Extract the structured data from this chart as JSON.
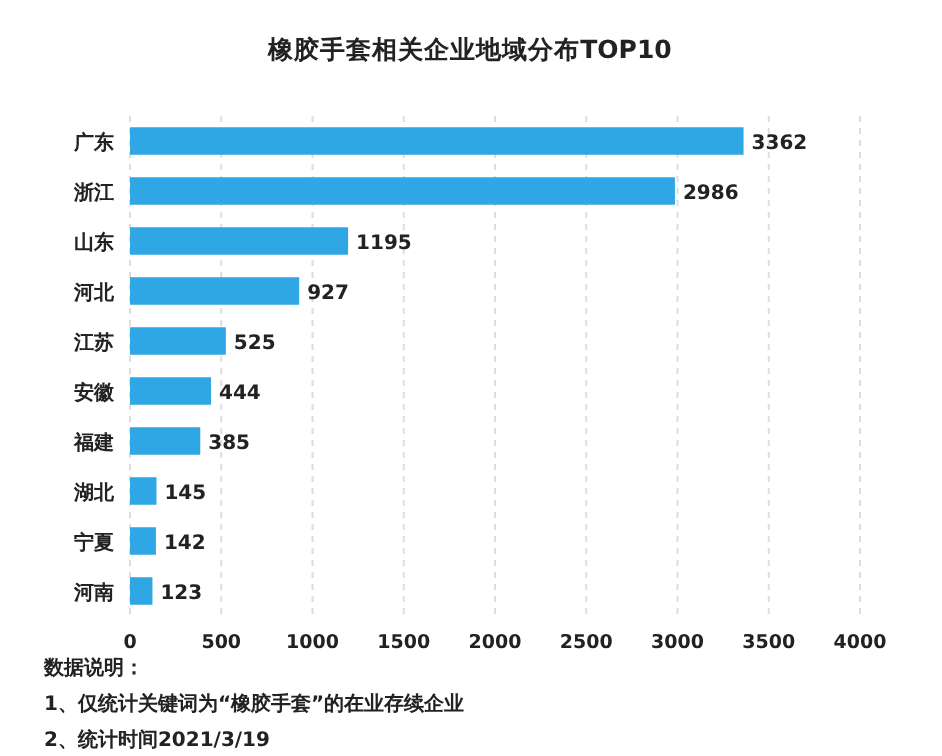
{
  "chart_data": {
    "type": "bar",
    "orientation": "horizontal",
    "title": "橡胶手套相关企业地域分布TOP10",
    "categories": [
      "广东",
      "浙江",
      "山东",
      "河北",
      "江苏",
      "安徽",
      "福建",
      "湖北",
      "宁夏",
      "河南"
    ],
    "values": [
      3362,
      2986,
      1195,
      927,
      525,
      444,
      385,
      145,
      142,
      123
    ],
    "color": "#2ea7e4",
    "xlim": [
      0,
      4000
    ],
    "xticks": [
      0,
      500,
      1000,
      1500,
      2000,
      2500,
      3000,
      3500,
      4000
    ],
    "grid": "x",
    "data_labels": true,
    "annotations": [
      "数据说明：",
      "1、仅统计关键词为“橡胶手套”的在业存续企业",
      "2、统计时间2021/3/19"
    ]
  }
}
